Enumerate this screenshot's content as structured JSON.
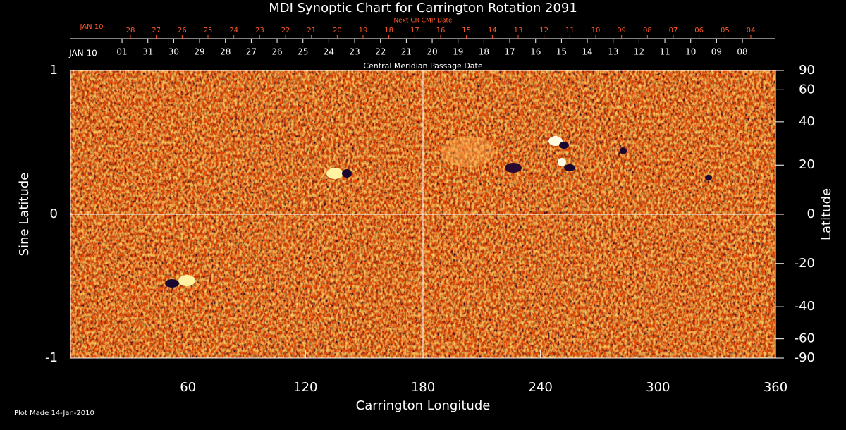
{
  "chart_data": {
    "type": "synoptic-map",
    "title": "MDI Synoptic Chart for Carrington Rotation 2091",
    "xlabel": "Carrington Longitude",
    "ylabel": "Sine Latitude",
    "y2label": "Latitude",
    "xlim": [
      0,
      360
    ],
    "xticks": [
      60,
      120,
      180,
      240,
      300,
      360
    ],
    "ylim": [
      -1,
      1
    ],
    "yticks": [
      -1,
      0,
      1
    ],
    "y2lim": [
      -90,
      90
    ],
    "y2scale": "sine",
    "y2ticks": [
      90,
      60,
      40,
      20,
      0,
      -20,
      -40,
      -60,
      -90
    ],
    "top_axis": {
      "label": "Central Meridian Passage Date",
      "start_label": "JAN 10",
      "ticks": [
        {
          "value": 26.3,
          "label": "01"
        },
        {
          "value": 39.5,
          "label": "31"
        },
        {
          "value": 52.7,
          "label": "30"
        },
        {
          "value": 65.9,
          "label": "29"
        },
        {
          "value": 79.1,
          "label": "28"
        },
        {
          "value": 92.3,
          "label": "27"
        },
        {
          "value": 105.5,
          "label": "26"
        },
        {
          "value": 118.7,
          "label": "25"
        },
        {
          "value": 131.9,
          "label": "24"
        },
        {
          "value": 145.1,
          "label": "23"
        },
        {
          "value": 158.3,
          "label": "22"
        },
        {
          "value": 171.5,
          "label": "21"
        },
        {
          "value": 184.7,
          "label": "20"
        },
        {
          "value": 197.9,
          "label": "19"
        },
        {
          "value": 211.1,
          "label": "18"
        },
        {
          "value": 224.3,
          "label": "17"
        },
        {
          "value": 237.5,
          "label": "16"
        },
        {
          "value": 250.7,
          "label": "15"
        },
        {
          "value": 263.9,
          "label": "14"
        },
        {
          "value": 277.1,
          "label": "13"
        },
        {
          "value": 290.3,
          "label": "12"
        },
        {
          "value": 303.5,
          "label": "11"
        },
        {
          "value": 316.7,
          "label": "10"
        },
        {
          "value": 329.9,
          "label": "09"
        },
        {
          "value": 343.1,
          "label": "08"
        }
      ]
    },
    "next_axis": {
      "label": "Next CR CMP Date",
      "start_label": "JAN 10",
      "color": "#ff5a2a",
      "ticks": [
        {
          "value": 30.6,
          "label": "28"
        },
        {
          "value": 43.8,
          "label": "27"
        },
        {
          "value": 57.0,
          "label": "26"
        },
        {
          "value": 70.2,
          "label": "25"
        },
        {
          "value": 83.4,
          "label": "24"
        },
        {
          "value": 96.6,
          "label": "23"
        },
        {
          "value": 109.8,
          "label": "22"
        },
        {
          "value": 123.0,
          "label": "21"
        },
        {
          "value": 136.2,
          "label": "20"
        },
        {
          "value": 149.4,
          "label": "19"
        },
        {
          "value": 162.6,
          "label": "18"
        },
        {
          "value": 175.8,
          "label": "17"
        },
        {
          "value": 189.0,
          "label": "16"
        },
        {
          "value": 202.2,
          "label": "15"
        },
        {
          "value": 215.4,
          "label": "14"
        },
        {
          "value": 228.6,
          "label": "13"
        },
        {
          "value": 241.8,
          "label": "12"
        },
        {
          "value": 255.0,
          "label": "11"
        },
        {
          "value": 268.2,
          "label": "10"
        },
        {
          "value": 281.4,
          "label": "09"
        },
        {
          "value": 294.6,
          "label": "08"
        },
        {
          "value": 307.8,
          "label": "07"
        },
        {
          "value": 321.0,
          "label": "06"
        },
        {
          "value": 334.2,
          "label": "05"
        },
        {
          "value": 347.4,
          "label": "04"
        }
      ]
    },
    "footer": "Plot Made 14-Jan-2010"
  }
}
